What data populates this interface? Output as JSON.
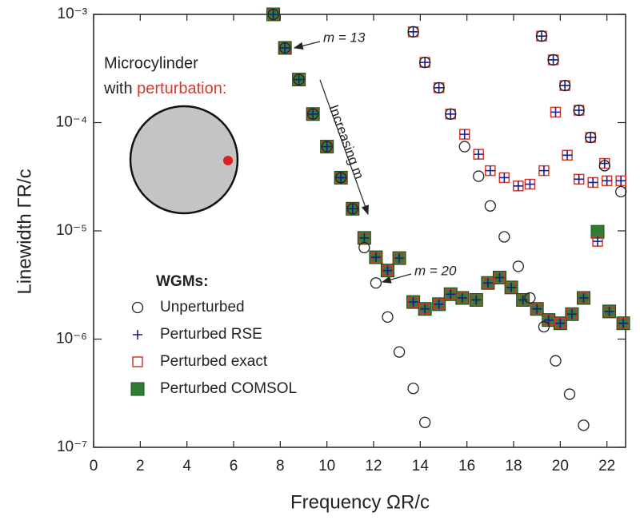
{
  "chart_data": {
    "type": "scatter",
    "xlabel": "Frequency ΩR/c",
    "ylabel": "Linewidth ΓR/c",
    "xlim": [
      0,
      22.8
    ],
    "xticks": [
      0,
      2,
      4,
      6,
      8,
      10,
      12,
      14,
      16,
      18,
      20,
      22
    ],
    "ylim": [
      1e-07,
      0.001
    ],
    "ylog": true,
    "yticks": [
      {
        "value": 1e-07,
        "label": "10⁻⁷"
      },
      {
        "value": 1e-06,
        "label": "10⁻⁶"
      },
      {
        "value": 1e-05,
        "label": "10⁻⁵"
      },
      {
        "value": 0.0001,
        "label": "10⁻⁴"
      },
      {
        "value": 0.001,
        "label": "10⁻³"
      }
    ],
    "legend_title": "WGMs:",
    "legend": "lower-left",
    "annotations": [
      "m = 13",
      "m = 20",
      "Increasing m",
      "Microcylinder",
      "with ",
      "perturbation:"
    ],
    "series": [
      {
        "name": "Unperturbed",
        "color": "#222222",
        "marker": "circle",
        "x": [
          7.7,
          8.2,
          8.8,
          9.4,
          10.0,
          10.6,
          11.1,
          11.6,
          12.1,
          12.6,
          13.1,
          13.7,
          14.2,
          13.7,
          14.2,
          14.8,
          15.3,
          15.9,
          16.5,
          17.0,
          17.6,
          18.2,
          18.7,
          19.3,
          19.8,
          20.4,
          21.0,
          19.2,
          19.7,
          20.2,
          20.8,
          21.3,
          21.9,
          22.6
        ],
        "values": [
          0.001,
          0.00049,
          0.00025,
          0.00012,
          6e-05,
          3.1e-05,
          1.6e-05,
          7e-06,
          3.3e-06,
          1.6e-06,
          7.6e-07,
          3.5e-07,
          1.7e-07,
          0.00069,
          0.00036,
          0.00021,
          0.00012,
          6e-05,
          3.2e-05,
          1.7e-05,
          8.8e-06,
          4.7e-06,
          2.4e-06,
          1.3e-06,
          6.3e-07,
          3.1e-07,
          1.6e-07,
          0.00063,
          0.00038,
          0.00022,
          0.00013,
          7.3e-05,
          4e-05,
          2.3e-05
        ]
      },
      {
        "name": "Perturbed RSE",
        "color": "#1a1a8c",
        "marker": "plus",
        "x": [
          7.7,
          8.2,
          8.8,
          9.4,
          10.0,
          10.6,
          11.1,
          11.6,
          12.1,
          12.6,
          13.1,
          13.7,
          14.2,
          14.8,
          15.3,
          15.8,
          16.4,
          16.9,
          17.4,
          17.9,
          18.4,
          19.0,
          19.5,
          20.0,
          20.5,
          21.0,
          21.6,
          22.1,
          22.7,
          13.7,
          14.2,
          14.8,
          15.3,
          15.9,
          16.5,
          17.0,
          17.6,
          18.2,
          18.7,
          19.3,
          19.2,
          19.7,
          20.2,
          20.8,
          21.3,
          21.9,
          19.8,
          20.3,
          20.8,
          21.4,
          22.0,
          22.6
        ],
        "values": [
          0.001,
          0.00049,
          0.00025,
          0.00012,
          6e-05,
          3.1e-05,
          1.6e-05,
          8.6e-06,
          5.7e-06,
          4.3e-06,
          5.6e-06,
          2.2e-06,
          1.9e-06,
          2.1e-06,
          2.6e-06,
          2.4e-06,
          2.3e-06,
          3.3e-06,
          3.7e-06,
          3e-06,
          2.3e-06,
          1.9e-06,
          1.5e-06,
          1.4e-06,
          1.7e-06,
          2.4e-06,
          8e-06,
          1.8e-06,
          1.4e-06,
          0.00069,
          0.00036,
          0.00021,
          0.00012,
          7.8e-05,
          5.1e-05,
          3.6e-05,
          3.1e-05,
          2.6e-05,
          2.7e-05,
          3.6e-05,
          0.00063,
          0.00038,
          0.00022,
          0.00013,
          7.3e-05,
          4.2e-05,
          0.000125,
          5e-05,
          3e-05,
          2.8e-05,
          2.9e-05,
          2.9e-05
        ]
      },
      {
        "name": "Perturbed exact",
        "color": "#d23a2a",
        "marker": "open-square",
        "x": [
          7.7,
          8.2,
          8.8,
          9.4,
          10.0,
          10.6,
          11.1,
          11.6,
          12.1,
          12.6,
          13.1,
          13.7,
          14.2,
          14.8,
          15.3,
          15.8,
          16.4,
          16.9,
          17.4,
          17.9,
          18.4,
          19.0,
          19.5,
          20.0,
          20.5,
          21.0,
          21.6,
          22.1,
          22.7,
          13.7,
          14.2,
          14.8,
          15.3,
          15.9,
          16.5,
          17.0,
          17.6,
          18.2,
          18.7,
          19.3,
          19.2,
          19.7,
          20.2,
          20.8,
          21.3,
          21.9,
          19.8,
          20.3,
          20.8,
          21.4,
          22.0,
          22.6
        ],
        "values": [
          0.001,
          0.00049,
          0.00025,
          0.00012,
          6e-05,
          3.1e-05,
          1.6e-05,
          8.6e-06,
          5.7e-06,
          4.3e-06,
          5.6e-06,
          2.2e-06,
          1.9e-06,
          2.1e-06,
          2.6e-06,
          2.4e-06,
          2.3e-06,
          3.3e-06,
          3.7e-06,
          3e-06,
          2.3e-06,
          1.9e-06,
          1.5e-06,
          1.4e-06,
          1.7e-06,
          2.4e-06,
          8e-06,
          1.8e-06,
          1.4e-06,
          0.00069,
          0.00036,
          0.00021,
          0.00012,
          7.8e-05,
          5.1e-05,
          3.6e-05,
          3.1e-05,
          2.6e-05,
          2.7e-05,
          3.6e-05,
          0.00063,
          0.00038,
          0.00022,
          0.00013,
          7.3e-05,
          4.2e-05,
          0.000125,
          5e-05,
          3e-05,
          2.8e-05,
          2.9e-05,
          2.9e-05
        ]
      },
      {
        "name": "Perturbed COMSOL",
        "color": "#2e7d32",
        "marker": "filled-square",
        "x": [
          7.7,
          8.2,
          8.8,
          9.4,
          10.0,
          10.6,
          11.1,
          11.6,
          12.1,
          12.6,
          13.1,
          13.7,
          14.2,
          14.8,
          15.3,
          15.8,
          16.4,
          16.9,
          17.4,
          17.9,
          18.4,
          19.0,
          19.5,
          20.0,
          20.5,
          21.0,
          21.6,
          22.1,
          22.7
        ],
        "values": [
          0.001,
          0.00049,
          0.00025,
          0.00012,
          6e-05,
          3.1e-05,
          1.6e-05,
          8.6e-06,
          5.7e-06,
          4.3e-06,
          5.6e-06,
          2.2e-06,
          1.9e-06,
          2.1e-06,
          2.6e-06,
          2.4e-06,
          2.3e-06,
          3.3e-06,
          3.7e-06,
          3e-06,
          2.3e-06,
          1.9e-06,
          1.5e-06,
          1.4e-06,
          1.7e-06,
          2.4e-06,
          9.8e-06,
          1.8e-06,
          1.4e-06
        ]
      }
    ]
  }
}
